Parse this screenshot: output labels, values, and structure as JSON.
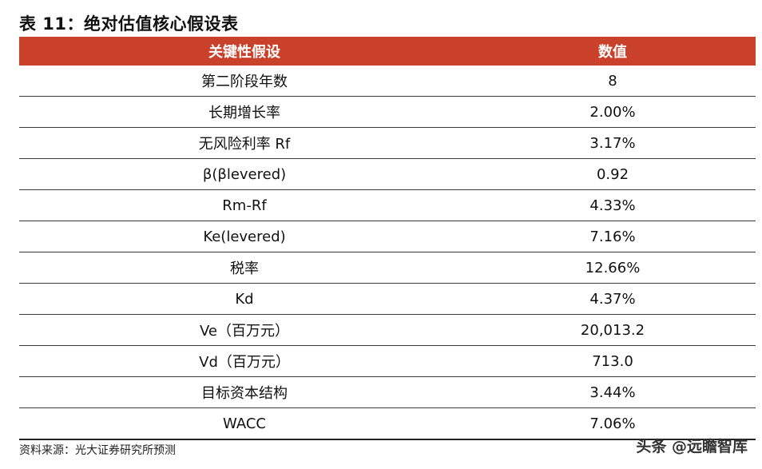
{
  "title": "表 11：绝对估值核心假设表",
  "table": {
    "headers": [
      "关键性假设",
      "数值"
    ],
    "rows": [
      [
        "第二阶段年数",
        "8"
      ],
      [
        "长期增长率",
        "2.00%"
      ],
      [
        "无风险利率 Rf",
        "3.17%"
      ],
      [
        "β(βlevered)",
        "0.92"
      ],
      [
        "Rm-Rf",
        "4.33%"
      ],
      [
        "Ke(levered)",
        "7.16%"
      ],
      [
        "税率",
        "12.66%"
      ],
      [
        "Kd",
        "4.37%"
      ],
      [
        "Ve（百万元）",
        "20,013.2"
      ],
      [
        "Vd（百万元）",
        "713.0"
      ],
      [
        "目标资本结构",
        "3.44%"
      ],
      [
        "WACC",
        "7.06%"
      ]
    ]
  },
  "source": "资料来源：光大证券研究所预测",
  "watermark": "头条 @远瞻智库",
  "colors": {
    "header_bg": "#c9412a",
    "header_text": "#ffffff"
  }
}
